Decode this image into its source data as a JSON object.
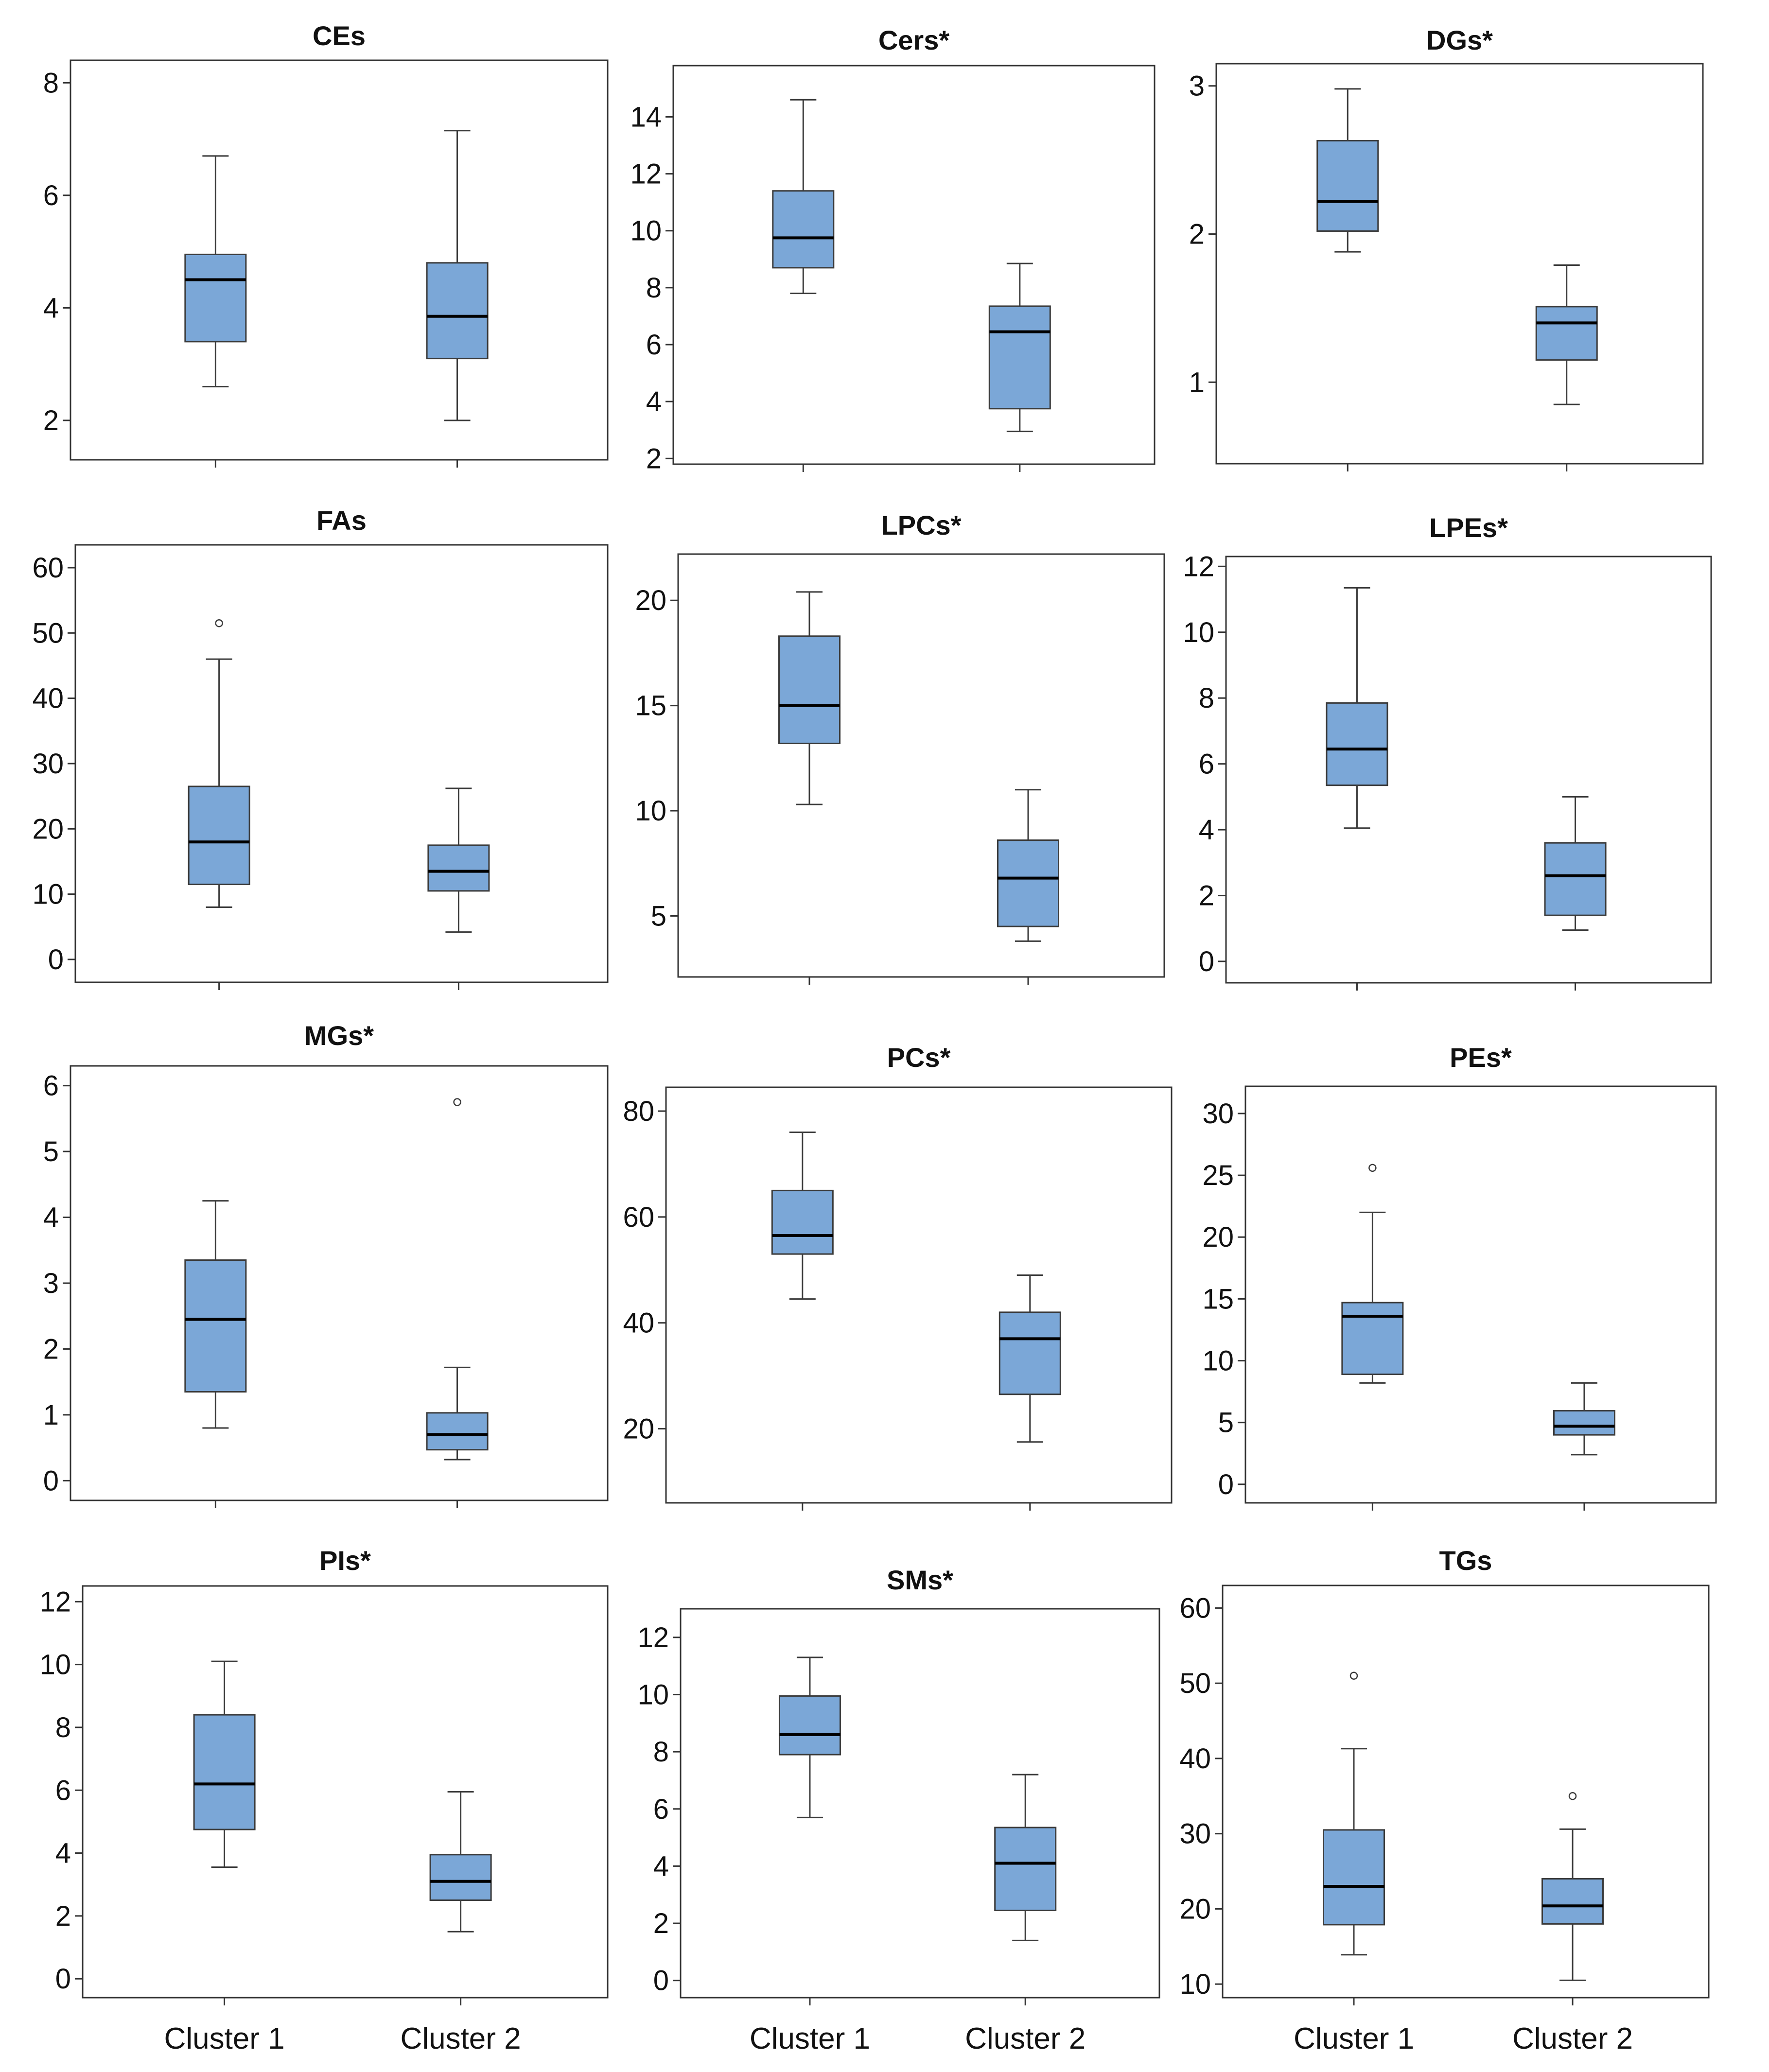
{
  "style": {
    "box_fill": "#7BA7D7",
    "box_stroke": "#3a3a3a",
    "median_color": "#000000",
    "frame_color": "#333333",
    "background": "#ffffff"
  },
  "chart_data": [
    {
      "type": "box",
      "title": "CEs",
      "ylim": [
        1.3,
        8.4
      ],
      "yticks": [
        2,
        4,
        6,
        8
      ],
      "categories": [
        "Cluster 1",
        "Cluster 2"
      ],
      "boxes": [
        {
          "min": 2.6,
          "q1": 3.4,
          "median": 4.5,
          "q3": 4.95,
          "max": 6.7,
          "outliers": []
        },
        {
          "min": 2.0,
          "q1": 3.1,
          "median": 3.85,
          "q3": 4.8,
          "max": 7.15,
          "outliers": []
        }
      ]
    },
    {
      "type": "box",
      "title": "Cers*",
      "ylim": [
        1.8,
        15.8
      ],
      "yticks": [
        2,
        4,
        6,
        8,
        10,
        12,
        14
      ],
      "categories": [
        "Cluster 1",
        "Cluster 2"
      ],
      "boxes": [
        {
          "min": 7.8,
          "q1": 8.7,
          "median": 9.75,
          "q3": 11.4,
          "max": 14.6,
          "outliers": []
        },
        {
          "min": 2.95,
          "q1": 3.75,
          "median": 6.45,
          "q3": 7.35,
          "max": 8.85,
          "outliers": []
        }
      ]
    },
    {
      "type": "box",
      "title": "DGs*",
      "ylim": [
        0.45,
        3.15
      ],
      "yticks": [
        1,
        2,
        3
      ],
      "categories": [
        "Cluster 1",
        "Cluster 2"
      ],
      "boxes": [
        {
          "min": 1.88,
          "q1": 2.02,
          "median": 2.22,
          "q3": 2.63,
          "max": 2.98,
          "outliers": []
        },
        {
          "min": 0.85,
          "q1": 1.15,
          "median": 1.4,
          "q3": 1.51,
          "max": 1.79,
          "outliers": []
        }
      ]
    },
    {
      "type": "box",
      "title": "FAs",
      "ylim": [
        -3.5,
        63.5
      ],
      "yticks": [
        0,
        10,
        20,
        30,
        40,
        50,
        60
      ],
      "categories": [
        "Cluster 1",
        "Cluster 2"
      ],
      "boxes": [
        {
          "min": 8,
          "q1": 11.5,
          "median": 18,
          "q3": 26.5,
          "max": 46,
          "outliers": [
            51.5
          ]
        },
        {
          "min": 4.2,
          "q1": 10.5,
          "median": 13.5,
          "q3": 17.5,
          "max": 26.2,
          "outliers": []
        }
      ]
    },
    {
      "type": "box",
      "title": "LPCs*",
      "ylim": [
        2.1,
        22.2
      ],
      "yticks": [
        5,
        10,
        15,
        20
      ],
      "categories": [
        "Cluster 1",
        "Cluster 2"
      ],
      "boxes": [
        {
          "min": 10.3,
          "q1": 13.2,
          "median": 15.0,
          "q3": 18.3,
          "max": 20.4,
          "outliers": []
        },
        {
          "min": 3.8,
          "q1": 4.5,
          "median": 6.8,
          "q3": 8.6,
          "max": 11.0,
          "outliers": []
        }
      ]
    },
    {
      "type": "box",
      "title": "LPEs*",
      "ylim": [
        -0.65,
        12.3
      ],
      "yticks": [
        0,
        2,
        4,
        6,
        8,
        10,
        12
      ],
      "categories": [
        "Cluster 1",
        "Cluster 2"
      ],
      "boxes": [
        {
          "min": 4.05,
          "q1": 5.35,
          "median": 6.45,
          "q3": 7.85,
          "max": 11.35,
          "outliers": []
        },
        {
          "min": 0.95,
          "q1": 1.4,
          "median": 2.6,
          "q3": 3.6,
          "max": 5.0,
          "outliers": []
        }
      ]
    },
    {
      "type": "box",
      "title": "MGs*",
      "ylim": [
        -0.3,
        6.3
      ],
      "yticks": [
        0,
        1,
        2,
        3,
        4,
        5,
        6
      ],
      "categories": [
        "Cluster 1",
        "Cluster 2"
      ],
      "boxes": [
        {
          "min": 0.8,
          "q1": 1.35,
          "median": 2.45,
          "q3": 3.35,
          "max": 4.25,
          "outliers": []
        },
        {
          "min": 0.32,
          "q1": 0.47,
          "median": 0.7,
          "q3": 1.03,
          "max": 1.72,
          "outliers": [
            5.75
          ]
        }
      ]
    },
    {
      "type": "box",
      "title": "PCs*",
      "ylim": [
        6,
        84.5
      ],
      "yticks": [
        20,
        40,
        60,
        80
      ],
      "categories": [
        "Cluster 1",
        "Cluster 2"
      ],
      "boxes": [
        {
          "min": 44.5,
          "q1": 53,
          "median": 56.5,
          "q3": 65,
          "max": 76,
          "outliers": []
        },
        {
          "min": 17.5,
          "q1": 26.5,
          "median": 37,
          "q3": 42,
          "max": 49,
          "outliers": []
        }
      ]
    },
    {
      "type": "box",
      "title": "PEs*",
      "ylim": [
        -1.5,
        32.2
      ],
      "yticks": [
        0,
        5,
        10,
        15,
        20,
        25,
        30
      ],
      "categories": [
        "Cluster 1",
        "Cluster 2"
      ],
      "boxes": [
        {
          "min": 8.2,
          "q1": 8.9,
          "median": 13.6,
          "q3": 14.7,
          "max": 22.0,
          "outliers": [
            25.6
          ]
        },
        {
          "min": 2.4,
          "q1": 4.0,
          "median": 4.7,
          "q3": 5.95,
          "max": 8.2,
          "outliers": []
        }
      ]
    },
    {
      "type": "box",
      "title": "PIs*",
      "ylim": [
        -0.6,
        12.5
      ],
      "yticks": [
        0,
        2,
        4,
        6,
        8,
        10,
        12
      ],
      "categories": [
        "Cluster 1",
        "Cluster 2"
      ],
      "boxes": [
        {
          "min": 3.55,
          "q1": 4.75,
          "median": 6.2,
          "q3": 8.4,
          "max": 10.1,
          "outliers": []
        },
        {
          "min": 1.5,
          "q1": 2.5,
          "median": 3.1,
          "q3": 3.95,
          "max": 5.95,
          "outliers": []
        }
      ]
    },
    {
      "type": "box",
      "title": "SMs*",
      "ylim": [
        -0.6,
        13.0
      ],
      "yticks": [
        0,
        2,
        4,
        6,
        8,
        10,
        12
      ],
      "categories": [
        "Cluster 1",
        "Cluster 2"
      ],
      "boxes": [
        {
          "min": 5.7,
          "q1": 7.9,
          "median": 8.6,
          "q3": 9.95,
          "max": 11.3,
          "outliers": []
        },
        {
          "min": 1.4,
          "q1": 2.45,
          "median": 4.1,
          "q3": 5.35,
          "max": 7.2,
          "outliers": []
        }
      ]
    },
    {
      "type": "box",
      "title": "TGs",
      "ylim": [
        8.2,
        63
      ],
      "yticks": [
        10,
        20,
        30,
        40,
        50,
        60
      ],
      "categories": [
        "Cluster 1",
        "Cluster 2"
      ],
      "boxes": [
        {
          "min": 13.9,
          "q1": 17.9,
          "median": 23,
          "q3": 30.5,
          "max": 41.3,
          "outliers": [
            51
          ]
        },
        {
          "min": 10.5,
          "q1": 18,
          "median": 20.4,
          "q3": 24,
          "max": 30.6,
          "outliers": [
            35
          ]
        }
      ]
    }
  ]
}
